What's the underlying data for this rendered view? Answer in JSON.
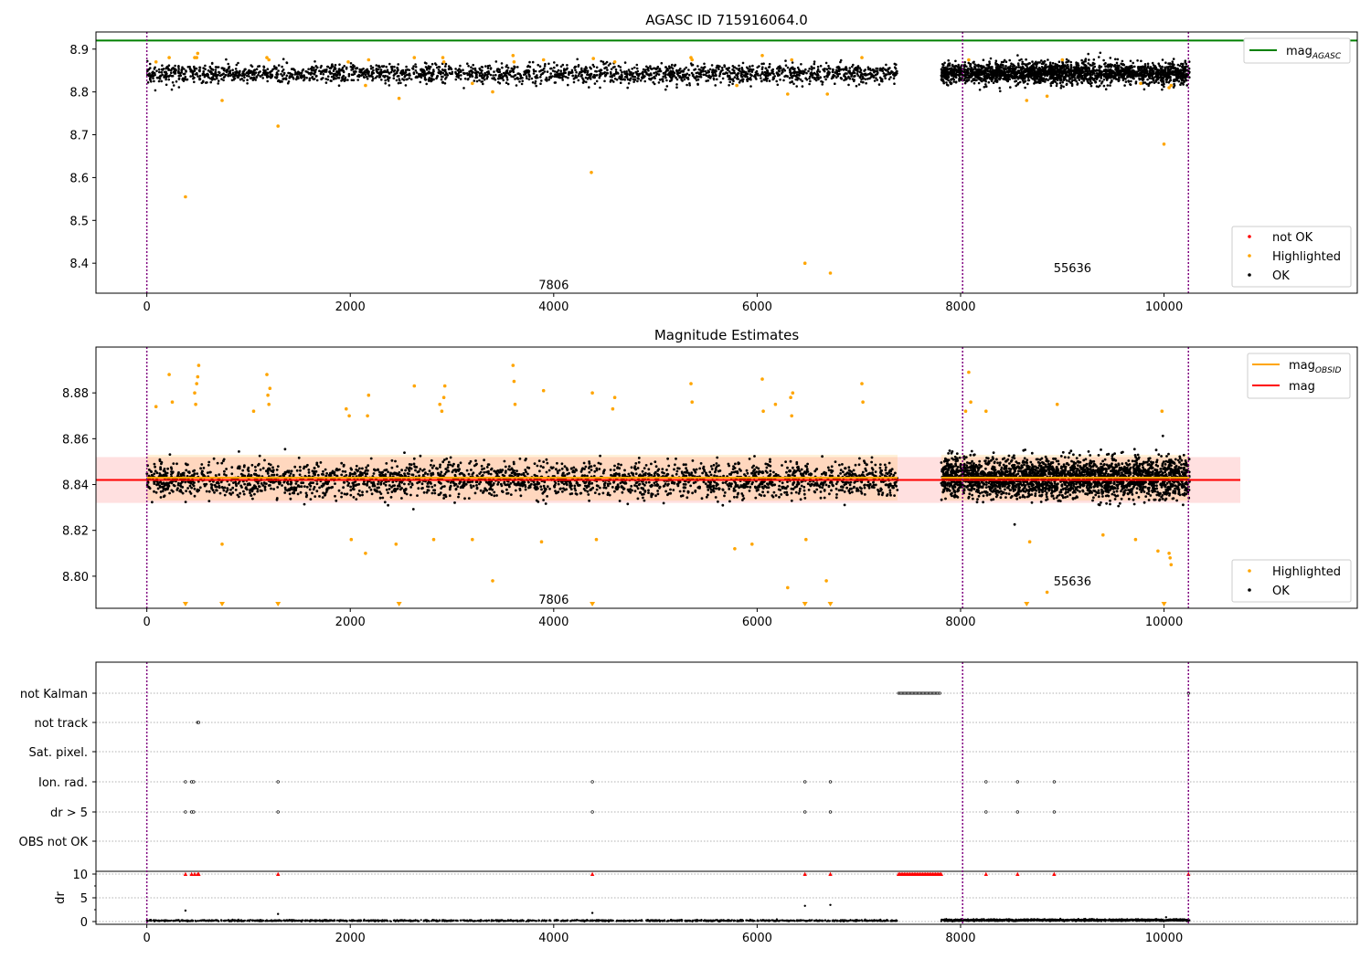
{
  "chart_data": [
    {
      "type": "scatter",
      "title": "AGASC ID 715916064.0",
      "xlim": [
        -500,
        11900
      ],
      "ylim": [
        8.33,
        8.94
      ],
      "x_ticks": [
        0,
        2000,
        4000,
        6000,
        8000,
        10000
      ],
      "y_ticks": [
        8.4,
        8.5,
        8.6,
        8.7,
        8.8,
        8.9
      ],
      "y_tick_labels": [
        "8.4",
        "8.5",
        "8.6",
        "8.7",
        "8.8",
        "8.9"
      ],
      "grid": false,
      "reference_line": {
        "name": "mag",
        "subscript": "AGASC",
        "value": 8.92,
        "color": "#008000"
      },
      "obsid_boundaries": [
        0,
        8020,
        10240
      ],
      "obsid_labels": [
        {
          "text": "7806",
          "x": 4000,
          "y": 8.35
        },
        {
          "text": "55636",
          "x": 9100,
          "y": 8.39
        }
      ],
      "ok_segments": [
        {
          "x_start": 0,
          "x_end": 7380,
          "mean": 8.842,
          "spread": 0.022
        },
        {
          "x_start": 7810,
          "x_end": 10250,
          "mean": 8.844,
          "spread": 0.025
        }
      ],
      "highlighted_points": [
        [
          380,
          8.555
        ],
        [
          740,
          8.78
        ],
        [
          1290,
          8.72
        ],
        [
          2480,
          8.785
        ],
        [
          4370,
          8.612
        ],
        [
          6300,
          8.795
        ],
        [
          6470,
          8.4
        ],
        [
          6690,
          8.795
        ],
        [
          6720,
          8.377
        ],
        [
          8650,
          8.78
        ],
        [
          8850,
          8.79
        ],
        [
          10000,
          8.678
        ],
        [
          90,
          8.87
        ],
        [
          220,
          8.88
        ],
        [
          470,
          8.88
        ],
        [
          490,
          8.88
        ],
        [
          500,
          8.89
        ],
        [
          1180,
          8.88
        ],
        [
          1200,
          8.875
        ],
        [
          1980,
          8.87
        ],
        [
          2180,
          8.875
        ],
        [
          2630,
          8.88
        ],
        [
          2910,
          8.88
        ],
        [
          2920,
          8.87
        ],
        [
          3600,
          8.885
        ],
        [
          3610,
          8.87
        ],
        [
          3900,
          8.875
        ],
        [
          4390,
          8.878
        ],
        [
          4600,
          8.87
        ],
        [
          5350,
          8.88
        ],
        [
          5360,
          8.875
        ],
        [
          6050,
          8.885
        ],
        [
          6340,
          8.875
        ],
        [
          7030,
          8.88
        ],
        [
          8080,
          8.875
        ],
        [
          9000,
          8.875
        ],
        [
          9770,
          8.82
        ],
        [
          10050,
          8.81
        ],
        [
          10070,
          8.815
        ],
        [
          3400,
          8.8
        ],
        [
          2150,
          8.815
        ],
        [
          3200,
          8.82
        ],
        [
          5800,
          8.815
        ]
      ],
      "legend": [
        "not OK",
        "Highlighted",
        "OK"
      ],
      "legend_location": "lower right",
      "colors": {
        "ok": "#000000",
        "highlighted": "#ffa500",
        "not_ok": "#ff0000"
      }
    },
    {
      "type": "scatter",
      "title": "Magnitude Estimates",
      "xlim": [
        -500,
        11900
      ],
      "ylim": [
        8.786,
        8.9
      ],
      "x_ticks": [
        0,
        2000,
        4000,
        6000,
        8000,
        10000
      ],
      "y_ticks": [
        8.8,
        8.82,
        8.84,
        8.86,
        8.88
      ],
      "y_tick_labels": [
        "8.80",
        "8.82",
        "8.84",
        "8.86",
        "8.88"
      ],
      "grid": false,
      "mag_line": {
        "name": "mag",
        "value": 8.842,
        "band": [
          8.832,
          8.852
        ],
        "x_range": [
          -500,
          10750
        ],
        "color": "#ff0000"
      },
      "obsid_mag": [
        {
          "x_start": 0,
          "x_end": 7380,
          "value": 8.843,
          "band": [
            8.833,
            8.853
          ]
        },
        {
          "x_start": 7810,
          "x_end": 10250,
          "value": 8.843,
          "band": [
            8.833,
            8.853
          ]
        }
      ],
      "obsid_boundaries": [
        0,
        8020,
        10240
      ],
      "obsid_labels": [
        {
          "text": "7806",
          "x": 4000,
          "y": 8.79
        },
        {
          "text": "55636",
          "x": 9100,
          "y": 8.798
        }
      ],
      "ok_segments": [
        {
          "x_start": 0,
          "x_end": 7380,
          "mean": 8.842,
          "spread": 0.0075
        },
        {
          "x_start": 7810,
          "x_end": 10250,
          "mean": 8.843,
          "spread": 0.0085
        }
      ],
      "highlighted_points": [
        [
          90,
          8.874
        ],
        [
          220,
          8.888
        ],
        [
          250,
          8.876
        ],
        [
          470,
          8.88
        ],
        [
          480,
          8.875
        ],
        [
          490,
          8.884
        ],
        [
          500,
          8.887
        ],
        [
          510,
          8.892
        ],
        [
          1050,
          8.872
        ],
        [
          1180,
          8.888
        ],
        [
          1190,
          8.879
        ],
        [
          1200,
          8.875
        ],
        [
          1210,
          8.882
        ],
        [
          1960,
          8.873
        ],
        [
          1990,
          8.87
        ],
        [
          2180,
          8.879
        ],
        [
          2170,
          8.87
        ],
        [
          2630,
          8.883
        ],
        [
          2880,
          8.875
        ],
        [
          2900,
          8.872
        ],
        [
          2920,
          8.878
        ],
        [
          2930,
          8.883
        ],
        [
          3600,
          8.892
        ],
        [
          3610,
          8.885
        ],
        [
          3620,
          8.875
        ],
        [
          3900,
          8.881
        ],
        [
          4380,
          8.88
        ],
        [
          4600,
          8.878
        ],
        [
          4580,
          8.873
        ],
        [
          5350,
          8.884
        ],
        [
          5360,
          8.876
        ],
        [
          6050,
          8.886
        ],
        [
          6060,
          8.872
        ],
        [
          6180,
          8.875
        ],
        [
          6330,
          8.878
        ],
        [
          6350,
          8.88
        ],
        [
          6340,
          8.87
        ],
        [
          7030,
          8.884
        ],
        [
          7040,
          8.876
        ],
        [
          8050,
          8.872
        ],
        [
          8080,
          8.889
        ],
        [
          8100,
          8.876
        ],
        [
          8250,
          8.872
        ],
        [
          8950,
          8.875
        ],
        [
          9980,
          8.872
        ],
        [
          740,
          8.814
        ],
        [
          2010,
          8.816
        ],
        [
          2150,
          8.81
        ],
        [
          2450,
          8.814
        ],
        [
          2820,
          8.816
        ],
        [
          3200,
          8.816
        ],
        [
          3400,
          8.798
        ],
        [
          3880,
          8.815
        ],
        [
          4420,
          8.816
        ],
        [
          5780,
          8.812
        ],
        [
          5950,
          8.814
        ],
        [
          6300,
          8.795
        ],
        [
          6680,
          8.798
        ],
        [
          6480,
          8.816
        ],
        [
          8680,
          8.815
        ],
        [
          8850,
          8.793
        ],
        [
          9400,
          8.818
        ],
        [
          9720,
          8.816
        ],
        [
          9940,
          8.811
        ],
        [
          10050,
          8.81
        ],
        [
          10060,
          8.808
        ],
        [
          10070,
          8.805
        ]
      ],
      "below_range_points": [
        380,
        740,
        1290,
        2480,
        4380,
        6470,
        6720,
        8650,
        10000
      ],
      "legend": [
        "Highlighted",
        "OK"
      ],
      "legend_location": "lower right",
      "legend_upper": [
        "mag_OBSID",
        "mag"
      ],
      "legend_upper_location": "upper right",
      "colors": {
        "ok": "#000000",
        "highlighted": "#ffa500",
        "mag": "#ff0000",
        "mag_obsid": "#ffa500"
      }
    },
    {
      "type": "scatter",
      "title": "",
      "xlim": [
        -500,
        11900
      ],
      "x_ticks": [
        0,
        2000,
        4000,
        6000,
        8000,
        10000
      ],
      "flag_rows": [
        "not Kalman",
        "not track",
        "Sat. pixel.",
        "Ion. rad.",
        "dr > 5",
        "OBS not OK"
      ],
      "flags": {
        "not Kalman": {
          "ranges": [
            [
              7390,
              7800
            ]
          ],
          "points": [
            10240
          ]
        },
        "not track": {
          "ranges": [],
          "points": [
            500,
            510
          ]
        },
        "Sat. pixel.": {
          "ranges": [],
          "points": []
        },
        "Ion. rad.": {
          "ranges": [],
          "points": [
            380,
            440,
            460,
            1290,
            4380,
            6470,
            6720,
            8250,
            8560,
            8920
          ]
        },
        "dr > 5": {
          "ranges": [],
          "points": [
            380,
            440,
            460,
            1290,
            4380,
            6470,
            6720,
            8250,
            8560,
            8920
          ]
        },
        "OBS not OK": {
          "ranges": [],
          "points": []
        }
      },
      "dr_panel": {
        "ylabel": "dr",
        "ylim": [
          -0.5,
          10.5
        ],
        "y_ticks": [
          0,
          5,
          10
        ],
        "y_tick_labels": [
          "0",
          "5",
          "10"
        ],
        "clipped_points": [
          380,
          440,
          470,
          500,
          510,
          1290,
          4380,
          6470,
          6720,
          8250,
          8560,
          8920,
          10240
        ],
        "clipped_range": [
          7390,
          7820
        ],
        "outliers": [
          [
            380,
            2.3
          ],
          [
            1290,
            1.6
          ],
          [
            4380,
            1.8
          ],
          [
            6470,
            3.3
          ],
          [
            6720,
            3.5
          ],
          [
            10020,
            0.9
          ]
        ],
        "segments": [
          {
            "x_start": 0,
            "x_end": 7380,
            "mean": 0.2,
            "spread": 0.12
          },
          {
            "x_start": 7810,
            "x_end": 10250,
            "mean": 0.3,
            "spread": 0.15
          }
        ]
      },
      "colors": {
        "ok": "#000000",
        "not_ok": "#ff0000"
      }
    }
  ]
}
